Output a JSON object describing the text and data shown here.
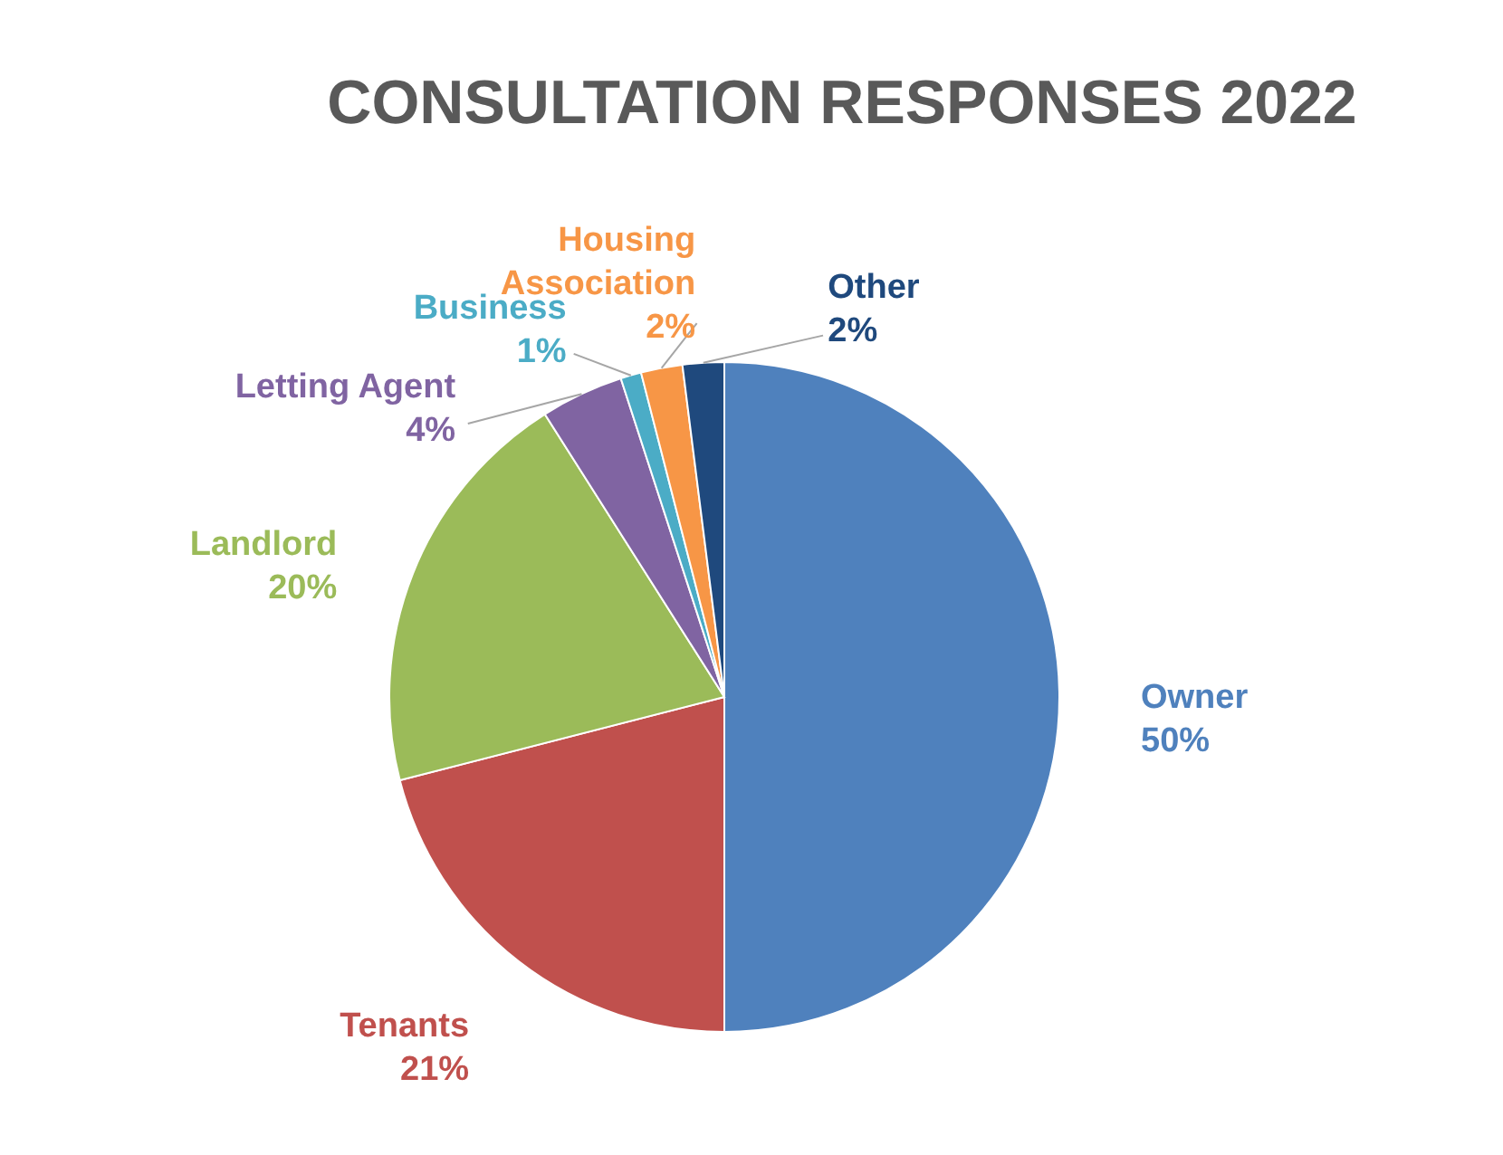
{
  "chart_data": {
    "type": "pie",
    "title": "CONSULTATION RESPONSES 2022",
    "categories": [
      "Owner",
      "Tenants",
      "Landlord",
      "Letting Agent",
      "Business",
      "Housing Association",
      "Other"
    ],
    "values": [
      50,
      21,
      20,
      4,
      1,
      2,
      2
    ],
    "colors": [
      "#4f81bd",
      "#c0504d",
      "#9bbb59",
      "#8064a2",
      "#4bacc6",
      "#f79646",
      "#1f497d"
    ],
    "value_labels": [
      "50%",
      "21%",
      "20%",
      "4%",
      "1%",
      "2%",
      "2%"
    ]
  }
}
